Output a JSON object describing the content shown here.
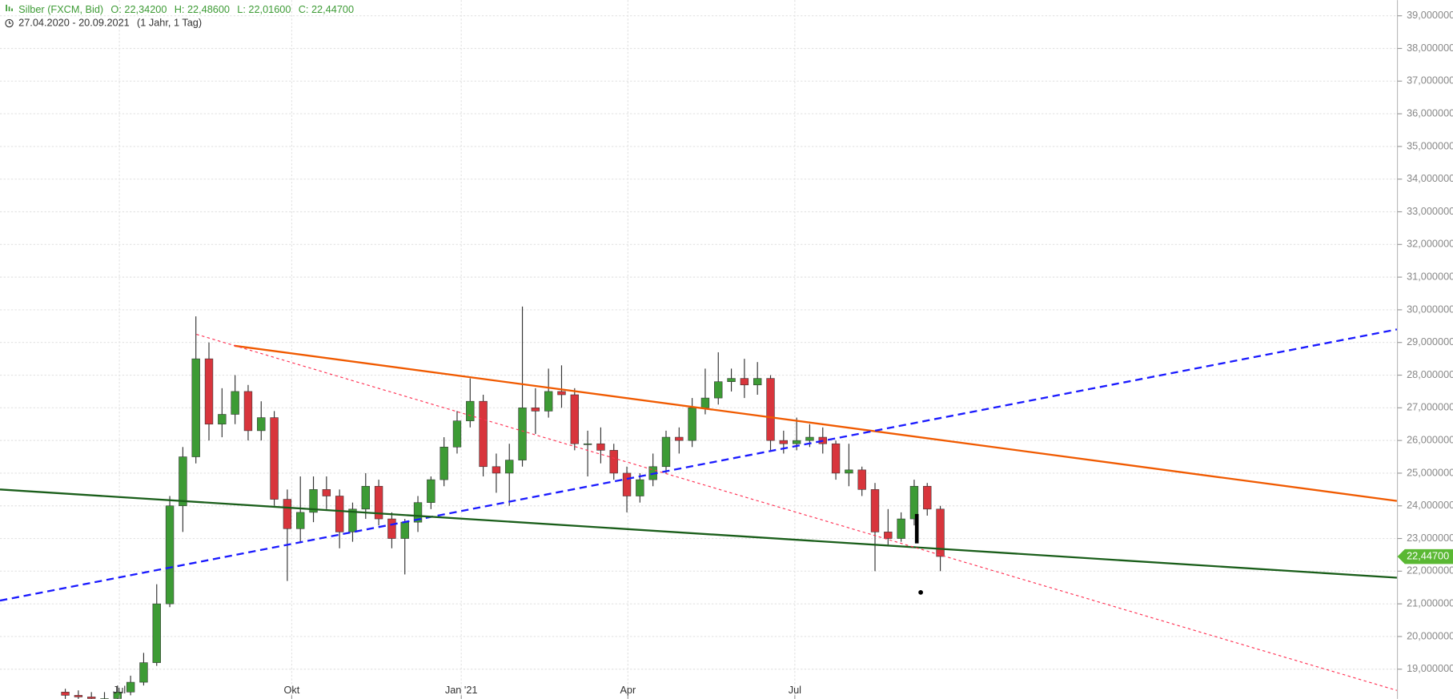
{
  "chart_data": {
    "type": "candlestick",
    "title": "Silber (FXCM, Bid)",
    "ohlc_labels": [
      "O: 22,34200",
      "H: 22,48600",
      "L: 22,01600",
      "C: 22,44700"
    ],
    "date_range": "27.04.2020 - 20.09.2021",
    "period": "(1 Jahr, 1 Tag)",
    "up_color": "#3d9b35",
    "down_color": "#d8353c",
    "x": [
      25,
      30,
      35,
      40,
      45,
      50,
      55,
      60,
      65,
      70,
      75,
      80,
      85,
      90,
      95,
      100,
      105,
      110,
      115,
      120,
      125,
      130,
      135,
      140,
      145,
      150,
      155,
      160,
      165,
      170,
      175,
      180,
      185,
      190,
      195,
      200,
      205,
      210,
      215,
      220,
      225,
      230,
      235,
      240,
      245,
      250,
      255,
      260,
      265,
      270,
      275,
      280,
      285,
      290,
      295,
      300,
      305,
      310,
      315,
      320,
      325,
      330,
      335,
      340,
      345,
      350,
      355,
      360
    ],
    "candles": [
      [
        18.3,
        18.4,
        18.0,
        18.2
      ],
      [
        18.2,
        18.35,
        18.0,
        18.15
      ],
      [
        18.15,
        18.3,
        18.0,
        18.1
      ],
      [
        18.1,
        18.3,
        18.0,
        18.1
      ],
      [
        18.1,
        18.5,
        18.05,
        18.3
      ],
      [
        18.3,
        18.8,
        18.2,
        18.6
      ],
      [
        18.6,
        19.5,
        18.5,
        19.2
      ],
      [
        19.2,
        21.6,
        19.1,
        21.0
      ],
      [
        21.0,
        24.3,
        20.9,
        24.0
      ],
      [
        24.0,
        25.8,
        23.2,
        25.5
      ],
      [
        25.5,
        29.8,
        25.3,
        28.5
      ],
      [
        28.5,
        29.0,
        26.0,
        26.5
      ],
      [
        26.5,
        27.6,
        26.1,
        26.8
      ],
      [
        26.8,
        28.0,
        26.5,
        27.5
      ],
      [
        27.5,
        27.7,
        26.0,
        26.3
      ],
      [
        26.3,
        27.2,
        26.0,
        26.7
      ],
      [
        26.7,
        26.9,
        24.0,
        24.2
      ],
      [
        24.2,
        24.5,
        21.7,
        23.3
      ],
      [
        23.3,
        24.9,
        22.9,
        23.8
      ],
      [
        23.8,
        24.9,
        23.5,
        24.5
      ],
      [
        24.5,
        24.9,
        23.9,
        24.3
      ],
      [
        24.3,
        24.5,
        22.7,
        23.2
      ],
      [
        23.2,
        24.1,
        22.9,
        23.9
      ],
      [
        23.9,
        25.0,
        23.6,
        24.6
      ],
      [
        24.6,
        24.8,
        23.4,
        23.6
      ],
      [
        23.6,
        23.8,
        22.7,
        23.0
      ],
      [
        23.0,
        23.6,
        21.9,
        23.5
      ],
      [
        23.5,
        24.3,
        23.2,
        24.1
      ],
      [
        24.1,
        24.9,
        23.9,
        24.8
      ],
      [
        24.8,
        26.1,
        24.6,
        25.8
      ],
      [
        25.8,
        26.9,
        25.6,
        26.6
      ],
      [
        26.6,
        27.9,
        26.4,
        27.2
      ],
      [
        27.2,
        27.4,
        24.9,
        25.2
      ],
      [
        25.2,
        25.6,
        24.4,
        25.0
      ],
      [
        25.0,
        25.9,
        24.0,
        25.4
      ],
      [
        25.4,
        30.1,
        25.2,
        27.0
      ],
      [
        27.0,
        27.6,
        26.2,
        26.9
      ],
      [
        26.9,
        28.2,
        26.7,
        27.5
      ],
      [
        27.5,
        28.3,
        27.0,
        27.4
      ],
      [
        27.4,
        27.6,
        25.7,
        25.9
      ],
      [
        25.9,
        26.3,
        24.9,
        25.9
      ],
      [
        25.9,
        26.4,
        25.3,
        25.7
      ],
      [
        25.7,
        25.9,
        24.8,
        25.0
      ],
      [
        25.0,
        25.2,
        23.8,
        24.3
      ],
      [
        24.3,
        25.0,
        24.1,
        24.8
      ],
      [
        24.8,
        25.6,
        24.6,
        25.2
      ],
      [
        25.2,
        26.3,
        25.0,
        26.1
      ],
      [
        26.1,
        26.4,
        25.6,
        26.0
      ],
      [
        26.0,
        27.3,
        25.8,
        27.0
      ],
      [
        27.0,
        28.2,
        26.8,
        27.3
      ],
      [
        27.3,
        28.7,
        27.1,
        27.8
      ],
      [
        27.8,
        28.2,
        27.5,
        27.9
      ],
      [
        27.9,
        28.5,
        27.3,
        27.7
      ],
      [
        27.7,
        28.4,
        27.4,
        27.9
      ],
      [
        27.9,
        28.0,
        25.7,
        26.0
      ],
      [
        26.0,
        26.3,
        25.6,
        25.9
      ],
      [
        25.9,
        26.7,
        25.7,
        26.0
      ],
      [
        26.0,
        26.5,
        25.8,
        26.1
      ],
      [
        26.1,
        26.4,
        25.6,
        25.9
      ],
      [
        25.9,
        26.0,
        24.8,
        25.0
      ],
      [
        25.0,
        25.9,
        24.6,
        25.1
      ],
      [
        25.1,
        25.2,
        24.3,
        24.5
      ],
      [
        24.5,
        24.7,
        22.0,
        23.2
      ],
      [
        23.2,
        23.9,
        22.8,
        23.0
      ],
      [
        23.0,
        23.8,
        22.9,
        23.6
      ],
      [
        23.6,
        24.8,
        23.4,
        24.6
      ],
      [
        24.6,
        24.7,
        23.7,
        23.9
      ],
      [
        23.9,
        24.0,
        22.0,
        22.45
      ]
    ],
    "drawings": [
      {
        "style": "solid",
        "color": "#f05a00",
        "width": 2,
        "x": [
          89.7,
          534.8
        ],
        "y": [
          28.9,
          24.15
        ]
      },
      {
        "style": "dashed",
        "color": "#1a1aff",
        "width": 2,
        "x": [
          0,
          534.8
        ],
        "y": [
          21.1,
          29.4
        ]
      },
      {
        "style": "solid",
        "color": "#1a5e1a",
        "width": 2,
        "x": [
          0,
          534.8
        ],
        "y": [
          24.5,
          21.8
        ]
      },
      {
        "style": "dotted",
        "color": "#ff3355",
        "width": 1,
        "x": [
          75.2,
          534.8
        ],
        "y": [
          29.25,
          18.35
        ]
      },
      {
        "style": "solid",
        "color": "#000000",
        "width": 4,
        "x": [
          351,
          351
        ],
        "y": [
          23.75,
          22.85
        ]
      }
    ],
    "marker": {
      "x": 352.5,
      "y": 21.35
    },
    "last_price": {
      "value": 22.447,
      "label": "22,44700"
    },
    "xlim": [
      0,
      535
    ],
    "xticks": [
      {
        "value": 45.7,
        "label": "Jul"
      },
      {
        "value": 111.7,
        "label": "Okt"
      },
      {
        "value": 176.6,
        "label": "Jan '21"
      },
      {
        "value": 240.4,
        "label": "Apr"
      },
      {
        "value": 304.3,
        "label": "Jul"
      }
    ],
    "ylim": [
      18.09,
      39.48
    ],
    "yticks": [
      {
        "value": 19,
        "label": "19,000000"
      },
      {
        "value": 20,
        "label": "20,000000"
      },
      {
        "value": 21,
        "label": "21,000000"
      },
      {
        "value": 22,
        "label": "22,000000"
      },
      {
        "value": 23,
        "label": "23,000000"
      },
      {
        "value": 24,
        "label": "24,000000"
      },
      {
        "value": 25,
        "label": "25,000000"
      },
      {
        "value": 26,
        "label": "26,000000"
      },
      {
        "value": 27,
        "label": "27,000000"
      },
      {
        "value": 28,
        "label": "28,000000"
      },
      {
        "value": 29,
        "label": "29,000000"
      },
      {
        "value": 30,
        "label": "30,000000"
      },
      {
        "value": 31,
        "label": "31,000000"
      },
      {
        "value": 32,
        "label": "32,000000"
      },
      {
        "value": 33,
        "label": "33,000000"
      },
      {
        "value": 34,
        "label": "34,000000"
      },
      {
        "value": 35,
        "label": "35,000000"
      },
      {
        "value": 36,
        "label": "36,000000"
      },
      {
        "value": 37,
        "label": "37,000000"
      },
      {
        "value": 38,
        "label": "38,000000"
      },
      {
        "value": 39,
        "label": "39,000000"
      }
    ],
    "grid": true
  }
}
